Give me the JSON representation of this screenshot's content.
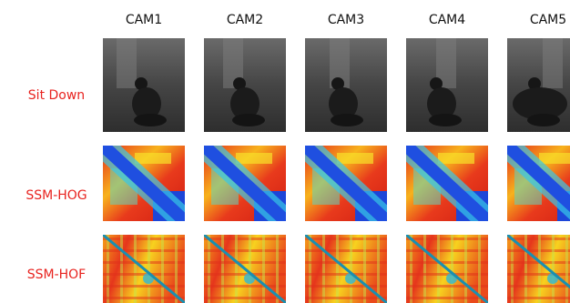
{
  "columns": [
    "CAM1",
    "CAM2",
    "CAM3",
    "CAM4",
    "CAM5"
  ],
  "rows": [
    "Sit Down",
    "SSM-HOG",
    "SSM-HOF"
  ]
}
